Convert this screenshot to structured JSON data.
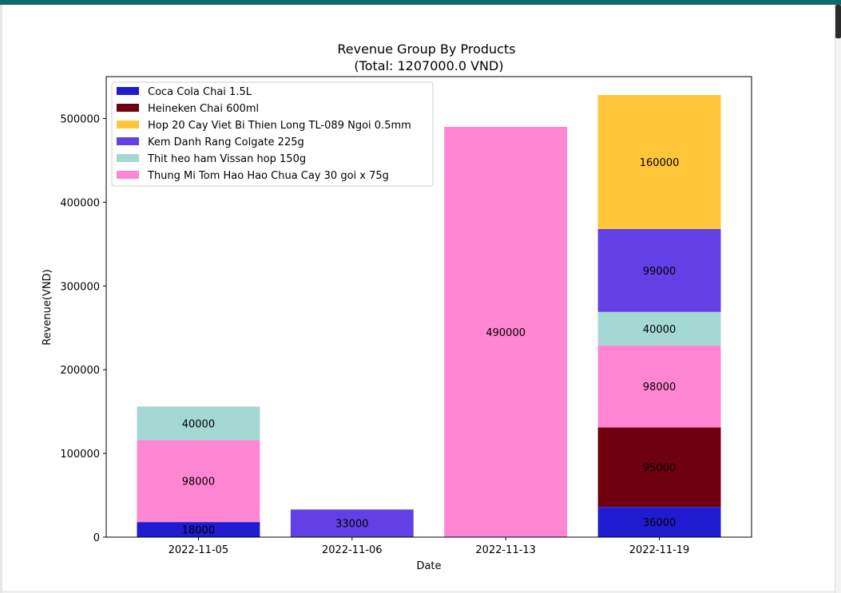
{
  "chart_data": {
    "type": "bar",
    "stacked": true,
    "title": "Revenue Group By Products",
    "subtitle": "(Total: 1207000.0 VND)",
    "xlabel": "Date",
    "ylabel": "Revenue(VND)",
    "ylim": [
      0,
      550000
    ],
    "yticks": [
      0,
      100000,
      200000,
      300000,
      400000,
      500000
    ],
    "categories": [
      "2022-11-05",
      "2022-11-06",
      "2022-11-13",
      "2022-11-19"
    ],
    "legend_position": "top-left",
    "series": [
      {
        "name": "Coca Cola Chai 1.5L",
        "color": "#1f1bd1",
        "values": [
          18000,
          0,
          0,
          36000
        ]
      },
      {
        "name": "Heineken Chai 600ml",
        "color": "#6e0010",
        "values": [
          0,
          0,
          0,
          95000
        ]
      },
      {
        "name": "Thung Mi Tom Hao Hao Chua Cay 30 goi x 75g",
        "color": "#ff86d3",
        "values": [
          98000,
          0,
          490000,
          98000
        ]
      },
      {
        "name": "Thit heo ham Vissan hop 150g",
        "color": "#a3d8d3",
        "values": [
          40000,
          0,
          0,
          40000
        ]
      },
      {
        "name": "Kem Danh Rang Colgate 225g",
        "color": "#6340e6",
        "values": [
          0,
          33000,
          0,
          99000
        ]
      },
      {
        "name": "Hop 20 Cay Viet Bi Thien Long TL-089 Ngoi 0.5mm",
        "color": "#ffc63a",
        "values": [
          0,
          0,
          0,
          160000
        ]
      }
    ],
    "legend_order": [
      "Coca Cola Chai 1.5L",
      "Heineken Chai 600ml",
      "Hop 20 Cay Viet Bi Thien Long TL-089 Ngoi 0.5mm",
      "Kem Danh Rang Colgate 225g",
      "Thit heo ham Vissan hop 150g",
      "Thung Mi Tom Hao Hao Chua Cay 30 goi x 75g"
    ]
  }
}
